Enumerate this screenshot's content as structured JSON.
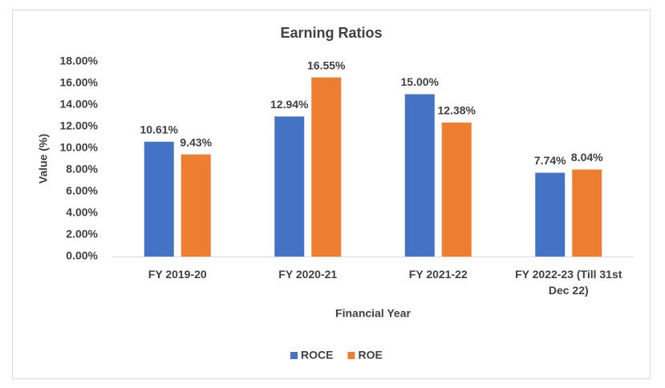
{
  "chart_data": {
    "type": "bar",
    "title": "Earning Ratios",
    "x_label": "Financial Year",
    "y_label": "Value (%)",
    "categories": [
      "FY 2019-20",
      "FY 2020-21",
      "FY 2021-22",
      "FY 2022-23 (Till 31st Dec 22)"
    ],
    "series": [
      {
        "name": "ROCE",
        "color": "#4472c4",
        "values": [
          10.61,
          12.94,
          15.0,
          7.74
        ],
        "value_labels": [
          "10.61%",
          "12.94%",
          "15.00%",
          "7.74%"
        ]
      },
      {
        "name": "ROE",
        "color": "#ed7d31",
        "values": [
          9.43,
          16.55,
          12.38,
          8.04
        ],
        "value_labels": [
          "9.43%",
          "16.55%",
          "12.38%",
          "8.04%"
        ]
      }
    ],
    "ylim": [
      0,
      18
    ],
    "yticks": [
      {
        "value": 0,
        "label": "0.00%"
      },
      {
        "value": 2,
        "label": "2.00%"
      },
      {
        "value": 4,
        "label": "4.00%"
      },
      {
        "value": 6,
        "label": "6.00%"
      },
      {
        "value": 8,
        "label": "8.00%"
      },
      {
        "value": 10,
        "label": "10.00%"
      },
      {
        "value": 12,
        "label": "12.00%"
      },
      {
        "value": 14,
        "label": "14.00%"
      },
      {
        "value": 16,
        "label": "16.00%"
      },
      {
        "value": 18,
        "label": "18.00%"
      }
    ],
    "legend": "bottom"
  }
}
